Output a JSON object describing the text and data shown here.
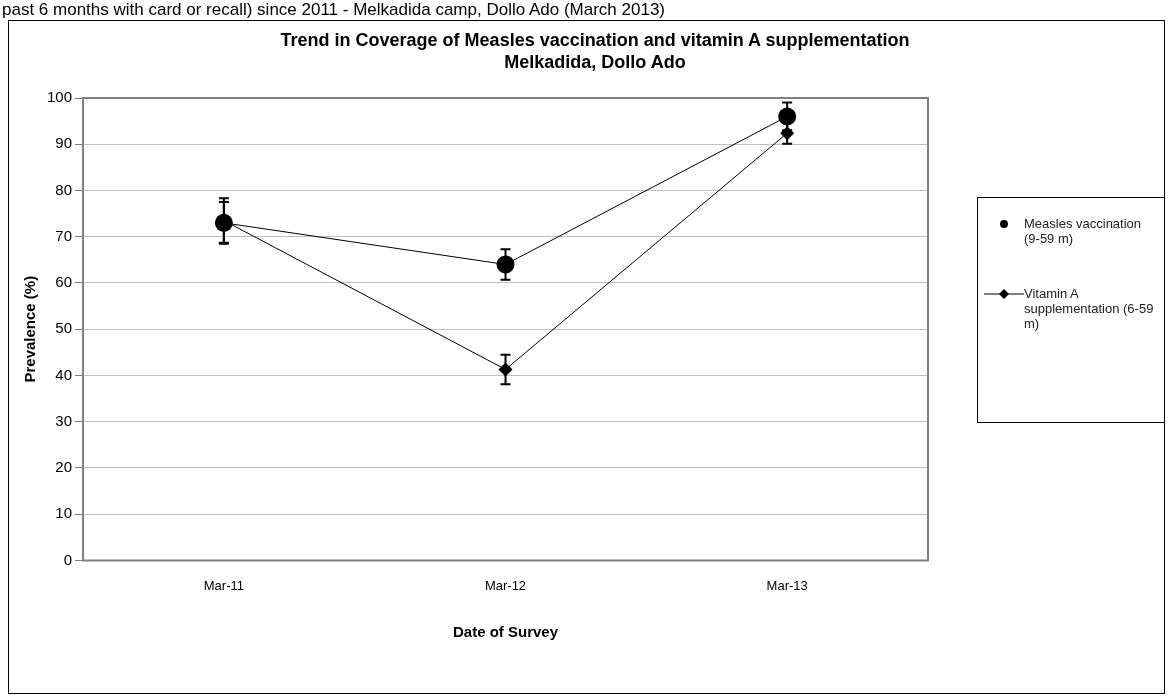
{
  "chart_data": {
    "type": "line",
    "title": "Trend in Coverage of Measles vaccination and vitamin A supplementation\nMelkadida, Dollo Ado",
    "xlabel": "Date of Survey",
    "ylabel": "Prevalence (%)",
    "annotations": [
      "past 6 months with card or recall) since 2011 - Melkadida camp, Dollo Ado (March 2013)"
    ],
    "categories": [
      "Mar-11",
      "Mar-12",
      "Mar-13"
    ],
    "series": [
      {
        "name": "Measles vaccination (9-59 m)",
        "color": "#000000",
        "marker": "circle",
        "values": [
          73,
          64,
          96
        ],
        "errors": [
          4.5,
          3.3,
          3
        ]
      },
      {
        "name": "Vitamin A supplementation (6-59 m)",
        "color": "#000000",
        "marker": "diamond",
        "values": [
          73.5,
          41.3,
          92.4
        ],
        "errors": [
          4.8,
          3.2,
          2.3
        ]
      }
    ],
    "ylim": [
      0,
      100
    ],
    "yticks": [
      0,
      10,
      20,
      30,
      40,
      50,
      60,
      70,
      80,
      90,
      100
    ],
    "grid": "y",
    "legend": "right",
    "line_style": "solid"
  }
}
